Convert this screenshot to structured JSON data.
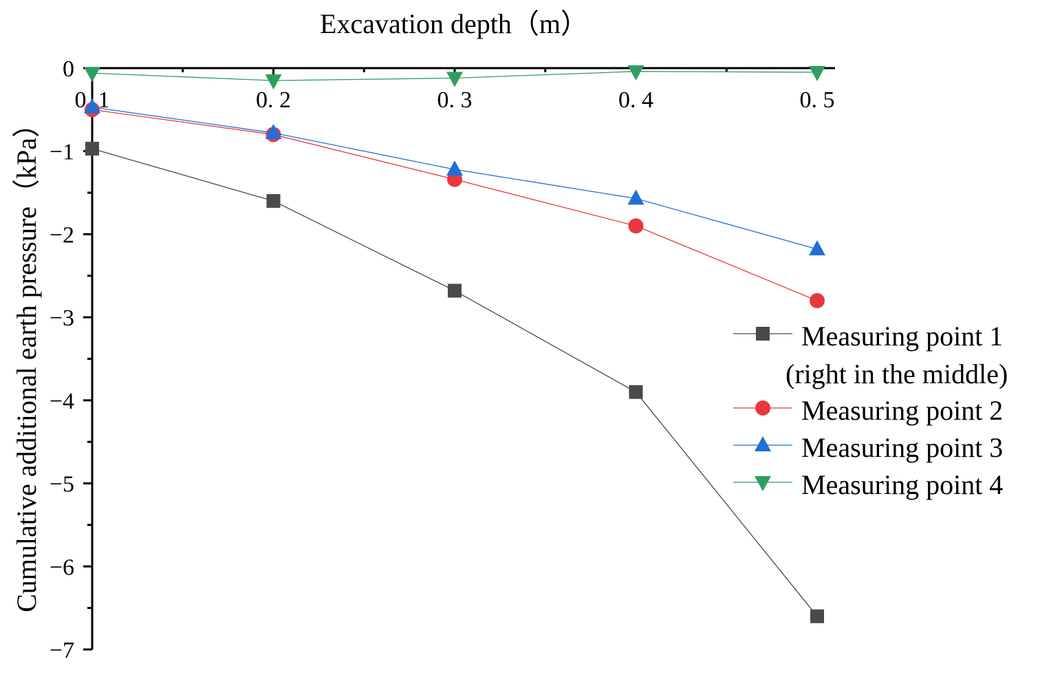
{
  "chart_data": {
    "type": "line",
    "title": "",
    "xlabel": "Excavation depth（m）",
    "ylabel": "Cumulative additional earth pressure（kPa）",
    "x": [
      0.1,
      0.2,
      0.3,
      0.4,
      0.5
    ],
    "x_tick_labels": [
      "0. 1",
      "0. 2",
      "0. 3",
      "0. 4",
      "0. 5"
    ],
    "xlim": [
      0.1,
      0.5
    ],
    "ylim": [
      -7,
      0
    ],
    "y_ticks": [
      0,
      -1,
      -2,
      -3,
      -4,
      -5,
      -6,
      -7
    ],
    "y_tick_labels": [
      "0",
      "−1",
      "−2",
      "−3",
      "−4",
      "−5",
      "−6",
      "−7"
    ],
    "x_axis_position": "top",
    "grid": false,
    "legend_position": "right",
    "series": [
      {
        "name": "Measuring point 1",
        "name_line2": "(right in the middle)",
        "marker": "square",
        "color": "#4a4a4a",
        "values": [
          -0.97,
          -1.6,
          -2.68,
          -3.9,
          -6.6
        ]
      },
      {
        "name": "Measuring point 2",
        "marker": "circle",
        "color": "#e8383d",
        "values": [
          -0.5,
          -0.8,
          -1.34,
          -1.9,
          -2.8
        ]
      },
      {
        "name": "Measuring point 3",
        "marker": "triangle-up",
        "color": "#1f6fd6",
        "values": [
          -0.47,
          -0.78,
          -1.22,
          -1.57,
          -2.18
        ]
      },
      {
        "name": "Measuring point 4",
        "marker": "triangle-down",
        "color": "#2e9e5f",
        "values": [
          -0.06,
          -0.15,
          -0.12,
          -0.04,
          -0.05
        ]
      }
    ]
  }
}
